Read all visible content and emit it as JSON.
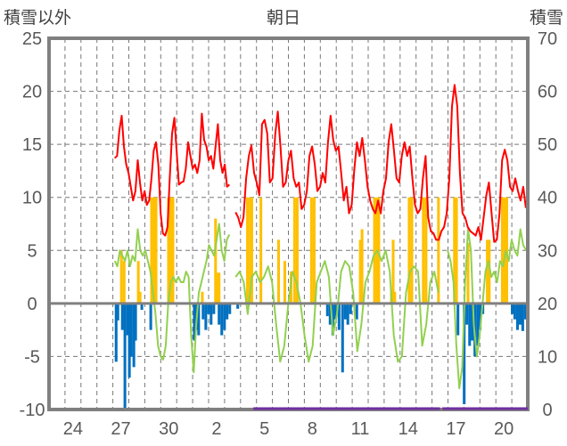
{
  "chart_data": {
    "type": "line",
    "title": "朝日",
    "ylabel_left": "積雪以外",
    "ylabel_right": "積雪",
    "ylim_left": [
      -10,
      25
    ],
    "ylim_right": [
      0,
      70
    ],
    "yticks_left": [
      "25",
      "20",
      "15",
      "10",
      "5",
      "0",
      "-5",
      "-10"
    ],
    "yticks_right": [
      "70",
      "60",
      "50",
      "40",
      "30",
      "20",
      "10",
      "0"
    ],
    "x_days": 30,
    "x_unit": "days from the 23rd",
    "xtick_labels": [
      {
        "day_index": 1,
        "label": "24"
      },
      {
        "day_index": 4,
        "label": "27"
      },
      {
        "day_index": 7,
        "label": "30"
      },
      {
        "day_index": 10,
        "label": "2"
      },
      {
        "day_index": 13,
        "label": "5"
      },
      {
        "day_index": 16,
        "label": "8"
      },
      {
        "day_index": 19,
        "label": "11"
      },
      {
        "day_index": 22,
        "label": "14"
      },
      {
        "day_index": 25,
        "label": "17"
      },
      {
        "day_index": 28,
        "label": "20"
      }
    ],
    "grid": true,
    "colors": {
      "red_line": "#ff0000",
      "green_line": "#92d050",
      "orange_bars": "#ffc000",
      "blue_bars": "#0070c0",
      "snow": "#7030a0",
      "frame": "#808080"
    },
    "red_line": [
      {
        "t0": 4.12,
        "t1": 11.3,
        "values": [
          13.7,
          13.9,
          16.3,
          17.7,
          14.8,
          13.1,
          12.3,
          11.0,
          9.7,
          10.6,
          13.5,
          11.4,
          9.7,
          10.6,
          9.3,
          9.7,
          11.8,
          14.4,
          15.2,
          13.1,
          8.5,
          6.6,
          6.4,
          7.2,
          11.8,
          16.0,
          17.5,
          14.4,
          11.2,
          11.4,
          11.5,
          12.7,
          15.2,
          13.9,
          12.7,
          13.1,
          12.3,
          13.5,
          17.9,
          15.4,
          14.8,
          13.5,
          13.9,
          12.7,
          14.8,
          16.9,
          13.5,
          12.3,
          13.1,
          11.0,
          11.2
        ]
      },
      {
        "t0": 11.69,
        "t1": 29.88,
        "values": [
          8.6,
          8.1,
          7.2,
          8.1,
          11.8,
          13.9,
          14.9,
          12.3,
          11.4,
          10.2,
          16.9,
          17.3,
          16.0,
          11.4,
          11.8,
          15.9,
          18.1,
          14.8,
          11.0,
          11.4,
          13.5,
          14.4,
          11.8,
          11.0,
          11.4,
          8.9,
          9.3,
          10.6,
          13.9,
          14.8,
          13.1,
          10.6,
          11.0,
          12.3,
          11.4,
          15.2,
          17.7,
          15.4,
          14.4,
          14.8,
          12.3,
          9.7,
          11.0,
          8.5,
          9.3,
          12.7,
          15.2,
          13.9,
          15.6,
          13.5,
          11.0,
          9.7,
          8.9,
          8.5,
          9.7,
          8.5,
          10.6,
          11.8,
          15.2,
          16.9,
          14.4,
          11.8,
          11.4,
          13.9,
          15.2,
          13.9,
          14.8,
          11.8,
          9.3,
          8.5,
          8.9,
          11.8,
          13.9,
          8.1,
          6.8,
          6.6,
          6.0,
          6.0,
          6.8,
          7.2,
          8.5,
          11.8,
          18.6,
          20.6,
          18.6,
          12.3,
          8.5,
          8.1,
          7.2,
          6.8,
          6.6,
          6.4,
          7.2,
          6.0,
          8.1,
          10.2,
          11.4,
          8.5,
          5.8,
          6.0,
          8.5,
          13.5,
          14.5,
          13.5,
          11.0,
          10.6,
          11.8,
          10.6,
          9.7,
          11.0,
          9.0
        ]
      }
    ],
    "green_line": [
      {
        "t0": 4.12,
        "t1": 11.3,
        "values": [
          4,
          3.5,
          5,
          4.5,
          4,
          5,
          3.5,
          4.5,
          4,
          7,
          5,
          4.5,
          5,
          4,
          3,
          1,
          -1,
          -4,
          -5,
          -5.3,
          -4,
          0,
          2,
          2.5,
          2,
          2.5,
          2,
          2,
          3,
          2.5,
          -3,
          -6.5,
          -2,
          1,
          2,
          3,
          4,
          5.5,
          5,
          4.5,
          6,
          7.5,
          5,
          4,
          6,
          6.5
        ]
      },
      {
        "t0": 11.69,
        "t1": 24.4,
        "values": [
          2.5,
          3,
          2,
          -1,
          2.5,
          3,
          2,
          2.5,
          3.5,
          2,
          -2,
          -5.5,
          -4,
          0,
          3,
          2,
          0,
          -3,
          -5.5,
          -4,
          2,
          3,
          4,
          2.5,
          -3,
          -1,
          3,
          4,
          3.5,
          1,
          -4.5,
          -2,
          2,
          3,
          4.5,
          5,
          4,
          5,
          3,
          -3,
          -5.5,
          -5,
          1,
          3,
          3.5,
          3,
          -4,
          -2,
          2,
          3,
          1
        ]
      },
      {
        "t0": 24.98,
        "t1": 29.9,
        "values": [
          5,
          4,
          2,
          -4,
          -8,
          -6,
          2,
          7,
          5,
          -2,
          -5,
          -3,
          0,
          3,
          4,
          2.5,
          3,
          2,
          4,
          3.5,
          5,
          4,
          6,
          5,
          4.5,
          7,
          5.5,
          5
        ]
      }
    ],
    "bar_width_days": 0.17,
    "orange_bars": [
      [
        4.45,
        5
      ],
      [
        4.62,
        4
      ],
      [
        5.51,
        4
      ],
      [
        5.62,
        1.1
      ],
      [
        6.34,
        10
      ],
      [
        6.51,
        10
      ],
      [
        6.62,
        10
      ],
      [
        7.4,
        10
      ],
      [
        7.57,
        10
      ],
      [
        7.68,
        10
      ],
      [
        9.52,
        1.1
      ],
      [
        10.35,
        8
      ],
      [
        10.46,
        2.9
      ],
      [
        10.57,
        2.9
      ],
      [
        12.35,
        10
      ],
      [
        12.52,
        10
      ],
      [
        12.62,
        10
      ],
      [
        13.19,
        10
      ],
      [
        14.3,
        6
      ],
      [
        14.69,
        4
      ],
      [
        15.08,
        3
      ],
      [
        15.3,
        10
      ],
      [
        15.47,
        10
      ],
      [
        16.36,
        10
      ],
      [
        16.53,
        10
      ],
      [
        19.42,
        6
      ],
      [
        19.53,
        7
      ],
      [
        20.31,
        10
      ],
      [
        20.48,
        10
      ],
      [
        20.58,
        10
      ],
      [
        21.37,
        1.1
      ],
      [
        21.48,
        6
      ],
      [
        21.58,
        1.1
      ],
      [
        22.48,
        10
      ],
      [
        22.65,
        10
      ],
      [
        23.37,
        10
      ],
      [
        23.54,
        10
      ],
      [
        24.32,
        10
      ],
      [
        25.32,
        10
      ],
      [
        25.45,
        10
      ],
      [
        26.17,
        5.7
      ],
      [
        27.38,
        6
      ],
      [
        27.5,
        6
      ],
      [
        28.32,
        10
      ],
      [
        28.49,
        10
      ],
      [
        28.6,
        10
      ]
    ],
    "blue_bars": [
      [
        4.12,
        -5.5
      ],
      [
        4.23,
        -1.6
      ],
      [
        4.51,
        -2.5
      ],
      [
        4.67,
        -10
      ],
      [
        4.84,
        -3
      ],
      [
        4.95,
        -7
      ],
      [
        5.06,
        -5
      ],
      [
        5.23,
        -6
      ],
      [
        5.34,
        -3.5
      ],
      [
        5.73,
        -0.6
      ],
      [
        6.29,
        -2.5
      ],
      [
        9.02,
        -3.5
      ],
      [
        9.13,
        -2.5
      ],
      [
        9.29,
        -3
      ],
      [
        9.57,
        -1.5
      ],
      [
        9.74,
        -2.5
      ],
      [
        9.91,
        -1
      ],
      [
        10.07,
        -2
      ],
      [
        10.24,
        -1
      ],
      [
        10.57,
        -2
      ],
      [
        10.74,
        -3
      ],
      [
        10.91,
        -2.5
      ],
      [
        11.07,
        -1.5
      ],
      [
        11.24,
        -1
      ],
      [
        11.74,
        -0.5
      ],
      [
        17.36,
        -1.2
      ],
      [
        17.53,
        -2
      ],
      [
        17.7,
        -3
      ],
      [
        17.86,
        -1.5
      ],
      [
        18.09,
        -2.5
      ],
      [
        18.31,
        -6.5
      ],
      [
        18.48,
        -1.5
      ],
      [
        18.64,
        -2
      ],
      [
        18.81,
        -1
      ],
      [
        19.2,
        -1.5
      ],
      [
        25.54,
        -3
      ],
      [
        25.93,
        -9.5
      ],
      [
        26.1,
        -2
      ],
      [
        26.27,
        -4
      ],
      [
        26.43,
        -3.5
      ],
      [
        26.6,
        -5
      ],
      [
        26.77,
        -4
      ],
      [
        26.93,
        -2.5
      ],
      [
        27.1,
        -1
      ],
      [
        28.94,
        -1
      ],
      [
        29.1,
        -1.5
      ],
      [
        29.27,
        -2.5
      ],
      [
        29.44,
        -2
      ],
      [
        29.6,
        -2.6
      ],
      [
        29.77,
        -1.5
      ]
    ],
    "snow_depth": [
      {
        "t0": 12.8,
        "t1": 24.5,
        "value": 0
      },
      {
        "t0": 24.65,
        "t1": 30,
        "value": 0
      }
    ]
  }
}
